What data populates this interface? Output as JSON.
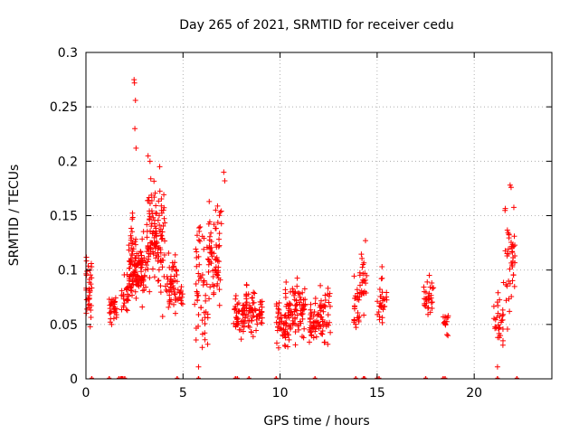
{
  "chart_data": {
    "type": "scatter",
    "title": "Day 265 of 2021, SRMTID for receiver cedu",
    "xlabel": "GPS time / hours",
    "ylabel": "SRMTID / TECUs",
    "xlim": [
      0,
      24
    ],
    "ylim": [
      0,
      0.3
    ],
    "grid": true,
    "marker": "+",
    "color": "#ff0000",
    "xticks": [
      {
        "value": 0,
        "label": "0"
      },
      {
        "value": 5,
        "label": "5"
      },
      {
        "value": 10,
        "label": "10"
      },
      {
        "value": 15,
        "label": "15"
      },
      {
        "value": 20,
        "label": "20"
      }
    ],
    "yticks": [
      {
        "value": 0,
        "label": "0"
      },
      {
        "value": 0.05,
        "label": "0.05"
      },
      {
        "value": 0.1,
        "label": "0.1"
      },
      {
        "value": 0.15,
        "label": "0.15"
      },
      {
        "value": 0.2,
        "label": "0.2"
      },
      {
        "value": 0.25,
        "label": "0.25"
      },
      {
        "value": 0.3,
        "label": "0.3"
      }
    ],
    "clusters": [
      {
        "x": [
          0.0,
          0.3
        ],
        "y": [
          0.04,
          0.13
        ],
        "n": 35
      },
      {
        "x": [
          1.2,
          1.6
        ],
        "y": [
          0.04,
          0.09
        ],
        "n": 30
      },
      {
        "x": [
          1.8,
          2.2
        ],
        "y": [
          0.05,
          0.1
        ],
        "n": 25
      },
      {
        "x": [
          2.2,
          2.6
        ],
        "y": [
          0.05,
          0.16
        ],
        "n": 70
      },
      {
        "x": [
          2.6,
          3.1
        ],
        "y": [
          0.06,
          0.14
        ],
        "n": 60
      },
      {
        "x": [
          3.1,
          3.6
        ],
        "y": [
          0.06,
          0.21
        ],
        "n": 70
      },
      {
        "x": [
          3.6,
          4.1
        ],
        "y": [
          0.05,
          0.2
        ],
        "n": 55
      },
      {
        "x": [
          4.1,
          4.7
        ],
        "y": [
          0.05,
          0.13
        ],
        "n": 50
      },
      {
        "x": [
          4.7,
          5.0
        ],
        "y": [
          0.06,
          0.09
        ],
        "n": 15
      },
      {
        "x": [
          5.6,
          6.3
        ],
        "y": [
          0.01,
          0.16
        ],
        "n": 55
      },
      {
        "x": [
          6.3,
          7.0
        ],
        "y": [
          0.04,
          0.19
        ],
        "n": 65
      },
      {
        "x": [
          7.6,
          8.2
        ],
        "y": [
          0.03,
          0.09
        ],
        "n": 45
      },
      {
        "x": [
          8.2,
          8.7
        ],
        "y": [
          0.03,
          0.1
        ],
        "n": 40
      },
      {
        "x": [
          8.7,
          9.1
        ],
        "y": [
          0.04,
          0.08
        ],
        "n": 25
      },
      {
        "x": [
          9.8,
          10.3
        ],
        "y": [
          0.02,
          0.09
        ],
        "n": 45
      },
      {
        "x": [
          10.3,
          10.8
        ],
        "y": [
          0.02,
          0.1
        ],
        "n": 50
      },
      {
        "x": [
          10.8,
          11.3
        ],
        "y": [
          0.03,
          0.1
        ],
        "n": 40
      },
      {
        "x": [
          11.5,
          12.0
        ],
        "y": [
          0.03,
          0.08
        ],
        "n": 40
      },
      {
        "x": [
          12.0,
          12.6
        ],
        "y": [
          0.02,
          0.1
        ],
        "n": 45
      },
      {
        "x": [
          13.8,
          14.1
        ],
        "y": [
          0.03,
          0.1
        ],
        "n": 25
      },
      {
        "x": [
          14.1,
          14.5
        ],
        "y": [
          0.05,
          0.13
        ],
        "n": 25
      },
      {
        "x": [
          15.0,
          15.5
        ],
        "y": [
          0.04,
          0.1
        ],
        "n": 30
      },
      {
        "x": [
          17.4,
          17.9
        ],
        "y": [
          0.05,
          0.1
        ],
        "n": 30
      },
      {
        "x": [
          18.4,
          18.7
        ],
        "y": [
          0.03,
          0.07
        ],
        "n": 15
      },
      {
        "x": [
          21.0,
          21.5
        ],
        "y": [
          0.01,
          0.09
        ],
        "n": 30
      },
      {
        "x": [
          21.5,
          22.1
        ],
        "y": [
          0.04,
          0.18
        ],
        "n": 45
      }
    ],
    "outliers": [
      {
        "x": 2.48,
        "y": 0.275
      },
      {
        "x": 2.5,
        "y": 0.272
      },
      {
        "x": 2.55,
        "y": 0.256
      },
      {
        "x": 2.52,
        "y": 0.23
      },
      {
        "x": 2.58,
        "y": 0.212
      },
      {
        "x": 3.2,
        "y": 0.205
      },
      {
        "x": 3.3,
        "y": 0.2
      },
      {
        "x": 3.8,
        "y": 0.195
      },
      {
        "x": 7.1,
        "y": 0.19
      },
      {
        "x": 7.15,
        "y": 0.182
      },
      {
        "x": 21.85,
        "y": 0.178
      },
      {
        "x": 21.9,
        "y": 0.176
      },
      {
        "x": 6.35,
        "y": 0.163
      },
      {
        "x": 14.4,
        "y": 0.127
      },
      {
        "x": 15.25,
        "y": 0.103
      },
      {
        "x": 5.8,
        "y": 0.011
      },
      {
        "x": 21.2,
        "y": 0.011
      }
    ],
    "baseline_x": [
      0.3,
      1.2,
      1.7,
      1.8,
      1.85,
      1.9,
      2.0,
      4.7,
      5.8,
      7.7,
      7.8,
      8.4,
      9.8,
      11.8,
      13.9,
      14.3,
      14.35,
      15.0,
      15.1,
      17.5,
      18.4,
      18.5,
      21.2,
      22.2
    ]
  }
}
